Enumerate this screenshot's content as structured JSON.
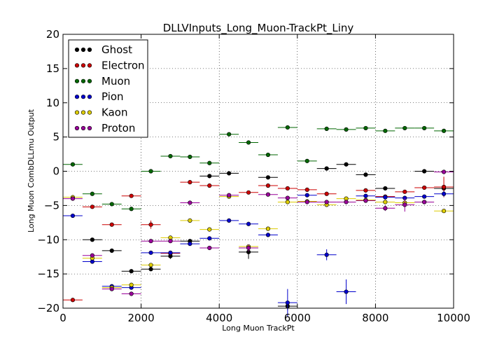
{
  "chart_data": {
    "type": "scatter",
    "title": "DLLVInputs_Long_Muon-TrackPt_Liny",
    "xlabel": "Long Muon TrackPt",
    "ylabel": "Long Muon CombDLLmu Output",
    "xlim": [
      0,
      10000
    ],
    "ylim": [
      -20,
      20
    ],
    "x_ticks": [
      "0",
      "2000",
      "4000",
      "6000",
      "8000",
      "10000"
    ],
    "y_ticks": [
      "20",
      "15",
      "10",
      "5",
      "0",
      "−5",
      "−10",
      "−15",
      "−20"
    ],
    "grid": true,
    "legend_position": "top-left",
    "bin_half_width": 250,
    "x": [
      250,
      750,
      1250,
      1750,
      2250,
      2750,
      3250,
      3750,
      4250,
      4750,
      5250,
      5750,
      6250,
      6750,
      7250,
      7750,
      8250,
      8750,
      9250,
      9750
    ],
    "series": [
      {
        "name": "Ghost",
        "color": "#000000",
        "values": [
          null,
          -10.0,
          -11.6,
          -14.6,
          -14.3,
          -12.4,
          -10.2,
          -0.7,
          -0.3,
          -11.8,
          -0.9,
          -19.7,
          null,
          0.4,
          1.0,
          -0.5,
          -2.5,
          null,
          0.0,
          -2.5
        ],
        "errors": [
          0,
          0.2,
          0.2,
          0.2,
          0.2,
          0.4,
          0.2,
          0.2,
          0.1,
          1.0,
          0.1,
          0.6,
          0,
          0.2,
          0.2,
          0.3,
          0.3,
          0,
          0.3,
          0.4
        ]
      },
      {
        "name": "Electron",
        "color": "#cc0000",
        "values": [
          -18.8,
          -5.2,
          -7.8,
          -3.6,
          -7.8,
          -12.0,
          -1.6,
          -2.1,
          null,
          -3.1,
          -2.1,
          -2.5,
          -2.7,
          -3.3,
          null,
          -2.8,
          -3.7,
          -3.0,
          -2.4,
          -2.3
        ],
        "errors": [
          0.1,
          0.2,
          0.2,
          0.2,
          0.6,
          0.3,
          0.2,
          0.2,
          0,
          0.2,
          0.2,
          0.2,
          0.2,
          0.2,
          0,
          0.2,
          0.2,
          0.2,
          0.2,
          1.5
        ]
      },
      {
        "name": "Muon",
        "color": "#006600",
        "values": [
          1.0,
          -3.3,
          -4.8,
          -5.5,
          0.0,
          2.2,
          2.1,
          1.2,
          5.4,
          4.2,
          2.4,
          6.4,
          1.5,
          6.2,
          6.1,
          6.3,
          5.9,
          6.3,
          6.3,
          5.9
        ],
        "errors": [
          0.1,
          0.1,
          0.1,
          0.1,
          0.1,
          0.1,
          0.1,
          0.1,
          0.1,
          0.1,
          0.1,
          0.1,
          0.1,
          0.1,
          0.1,
          0.1,
          0.1,
          0.1,
          0.1,
          0.1
        ]
      },
      {
        "name": "Pion",
        "color": "#0000cc",
        "values": [
          -6.5,
          -13.2,
          -16.8,
          -17.0,
          -11.9,
          -11.9,
          -10.6,
          -9.8,
          -7.2,
          -7.7,
          -9.3,
          -19.2,
          -3.5,
          -12.2,
          -17.6,
          -3.6,
          -3.8,
          -3.9,
          -3.7,
          -3.3
        ],
        "errors": [
          0.1,
          0.2,
          0.2,
          0.2,
          0.2,
          0.2,
          0.2,
          0.2,
          0.1,
          0.2,
          0.2,
          2.0,
          0.2,
          0.8,
          1.8,
          0.2,
          0.2,
          0.2,
          0.2,
          0.4
        ]
      },
      {
        "name": "Kaon",
        "color": "#ddcc00",
        "values": [
          -3.8,
          -12.7,
          -17.0,
          -16.6,
          -13.7,
          -9.7,
          -7.2,
          -8.5,
          -3.7,
          -11.0,
          -8.4,
          -4.5,
          -4.4,
          -4.9,
          -4.0,
          -4.2,
          -4.5,
          -4.6,
          -4.5,
          -5.8
        ],
        "errors": [
          0.1,
          0.2,
          0.2,
          0.2,
          0.2,
          0.2,
          0.2,
          0.2,
          0.2,
          0.3,
          0.2,
          0.2,
          0.2,
          0.2,
          0.2,
          0.2,
          0.2,
          0.2,
          0.2,
          0.2
        ]
      },
      {
        "name": "Proton",
        "color": "#990099",
        "values": [
          -4.0,
          -12.3,
          -17.2,
          -17.9,
          -10.2,
          -10.2,
          -4.6,
          -11.2,
          -3.5,
          -11.2,
          -3.4,
          -3.9,
          -4.5,
          -4.5,
          -4.5,
          -4.3,
          -5.4,
          -4.9,
          -4.5,
          -0.1
        ],
        "errors": [
          0.1,
          0.2,
          0.2,
          0.2,
          0.2,
          0.2,
          0.2,
          0.2,
          0.2,
          0.5,
          0.2,
          0.2,
          0.2,
          0.2,
          0.2,
          0.2,
          0.4,
          1.0,
          0.3,
          0.3
        ]
      }
    ]
  }
}
